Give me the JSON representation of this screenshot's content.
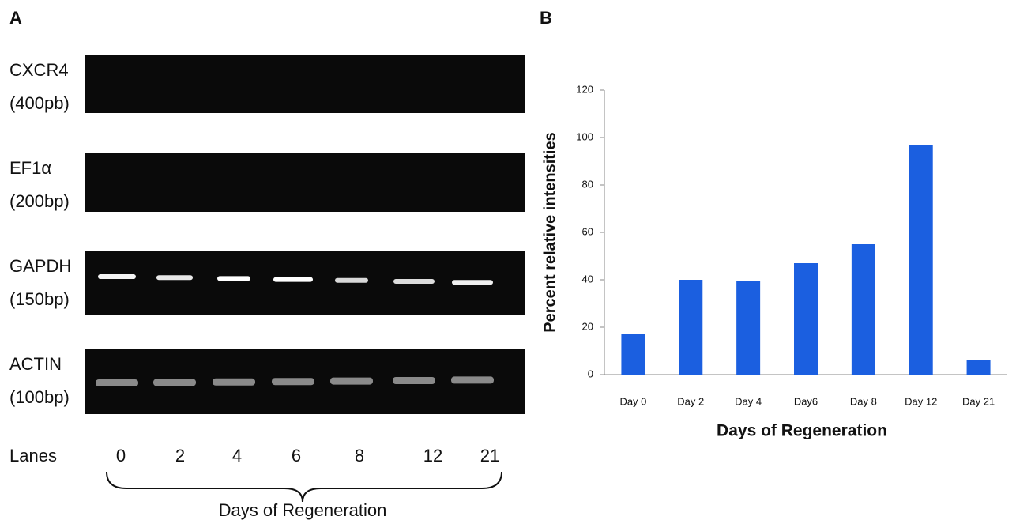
{
  "panel_a": {
    "label": "A",
    "gels": [
      {
        "name": "CXCR4",
        "size": "(400pb)"
      },
      {
        "name": "EF1α",
        "size": "(200bp)"
      },
      {
        "name": "GAPDH",
        "size": "(150bp)"
      },
      {
        "name": "ACTIN",
        "size": "(100bp)"
      }
    ],
    "lanes_label": "Lanes",
    "lanes": [
      "0",
      "2",
      "4",
      "6",
      "8",
      "12",
      "21"
    ],
    "x_label": "Days of Regeneration"
  },
  "chart_data": {
    "type": "bar",
    "panel_label": "B",
    "y_label": "Percent relative intensities",
    "x_label": "Days of Regeneration",
    "categories": [
      "Day 0",
      "Day 2",
      "Day 4",
      "Day6",
      "Day 8",
      "Day 12",
      "Day 21"
    ],
    "values": [
      17,
      40,
      39.5,
      47,
      55,
      97,
      6
    ],
    "color": "#1b5fe0",
    "ylim": [
      0,
      120
    ],
    "yticks": [
      0,
      20,
      40,
      60,
      80,
      100,
      120
    ],
    "grid": false
  }
}
